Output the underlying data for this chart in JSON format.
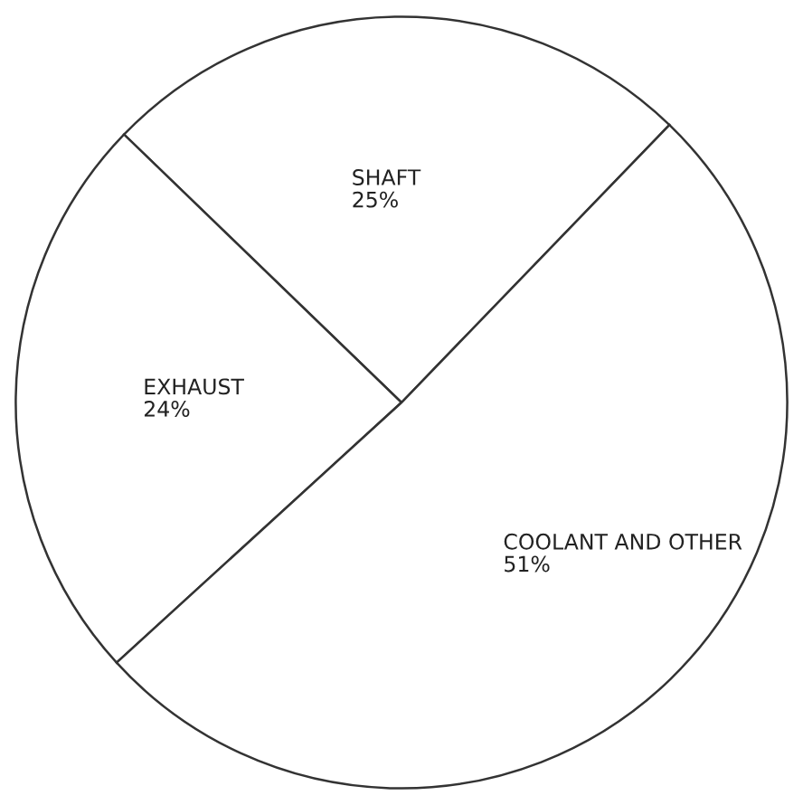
{
  "chart_data": {
    "type": "pie",
    "categories": [
      "SHAFT",
      "EXHAUST",
      "COOLANT AND OTHER"
    ],
    "values": [
      25,
      24,
      51
    ],
    "value_labels": [
      "25%",
      "24%",
      "51%"
    ],
    "colors": [
      "#ffffff",
      "#ffffff",
      "#ffffff"
    ]
  }
}
